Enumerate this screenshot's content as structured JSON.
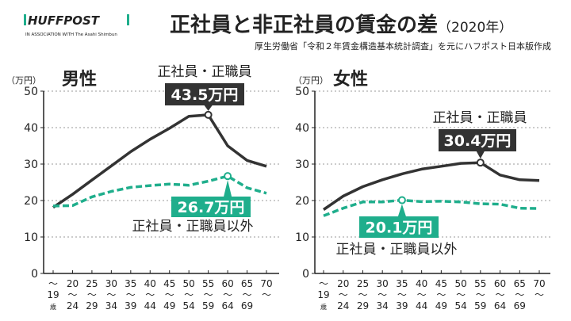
{
  "header": {
    "logo": "HUFFPOST",
    "logo_sub": "IN ASSOCIATION WITH The Asahi Shimbun",
    "title": "正社員と非正社員の賃金の差",
    "title_year": "（2020年）",
    "source": "厚生労働省「令和２年賃金構造基本統計調査」を元にハフポスト日本版作成"
  },
  "colors": {
    "regular": "#333333",
    "non_regular": "#1fae8c",
    "grid": "#999999"
  },
  "chart_data": [
    {
      "type": "line",
      "title": "男性",
      "ylabel": "（万円）",
      "ylim": [
        0,
        50
      ],
      "yticks": [
        0,
        10,
        20,
        30,
        40,
        50
      ],
      "grid": true,
      "categories": [
        [
          "〜",
          "19",
          "歳"
        ],
        [
          "20",
          "〜",
          "24"
        ],
        [
          "25",
          "〜",
          "29"
        ],
        [
          "30",
          "〜",
          "34"
        ],
        [
          "35",
          "〜",
          "39"
        ],
        [
          "40",
          "〜",
          "44"
        ],
        [
          "45",
          "〜",
          "49"
        ],
        [
          "50",
          "〜",
          "54"
        ],
        [
          "55",
          "〜",
          "59"
        ],
        [
          "60",
          "〜",
          "64"
        ],
        [
          "65",
          "〜",
          "69"
        ],
        [
          "70",
          "〜",
          ""
        ]
      ],
      "series": [
        {
          "name": "正社員・正職員",
          "style": "solid",
          "values": [
            18.1,
            21.7,
            25.6,
            29.5,
            33.4,
            36.8,
            39.8,
            43.1,
            43.5,
            35.0,
            31.0,
            29.4
          ],
          "callout": {
            "index": 8,
            "label": "43.5万円"
          }
        },
        {
          "name": "正社員・正職員以外",
          "style": "dashed",
          "values": [
            18.5,
            18.6,
            21.0,
            22.5,
            23.6,
            24.1,
            24.5,
            24.2,
            25.3,
            26.7,
            23.5,
            22.0
          ],
          "callout": {
            "index": 9,
            "label": "26.7万円"
          }
        }
      ]
    },
    {
      "type": "line",
      "title": "女性",
      "ylabel": "（万円）",
      "ylim": [
        0,
        50
      ],
      "yticks": [
        0,
        10,
        20,
        30,
        40,
        50
      ],
      "grid": true,
      "categories": [
        [
          "〜",
          "19",
          "歳"
        ],
        [
          "20",
          "〜",
          "24"
        ],
        [
          "25",
          "〜",
          "29"
        ],
        [
          "30",
          "〜",
          "34"
        ],
        [
          "35",
          "〜",
          "39"
        ],
        [
          "40",
          "〜",
          "44"
        ],
        [
          "45",
          "〜",
          "49"
        ],
        [
          "50",
          "〜",
          "54"
        ],
        [
          "55",
          "〜",
          "59"
        ],
        [
          "60",
          "〜",
          "64"
        ],
        [
          "65",
          "〜",
          "69"
        ],
        [
          "70",
          "〜",
          ""
        ]
      ],
      "series": [
        {
          "name": "正社員・正職員",
          "style": "solid",
          "values": [
            17.5,
            21.2,
            23.8,
            25.7,
            27.3,
            28.6,
            29.4,
            30.2,
            30.4,
            27.0,
            25.7,
            25.5
          ],
          "callout": {
            "index": 8,
            "label": "30.4万円"
          }
        },
        {
          "name": "正社員・正職員以外",
          "style": "dashed",
          "values": [
            15.8,
            17.9,
            19.6,
            19.6,
            20.1,
            19.7,
            19.8,
            19.6,
            19.1,
            19.0,
            17.9,
            17.8
          ],
          "callout": {
            "index": 4,
            "label": "20.1万円"
          }
        }
      ]
    }
  ]
}
